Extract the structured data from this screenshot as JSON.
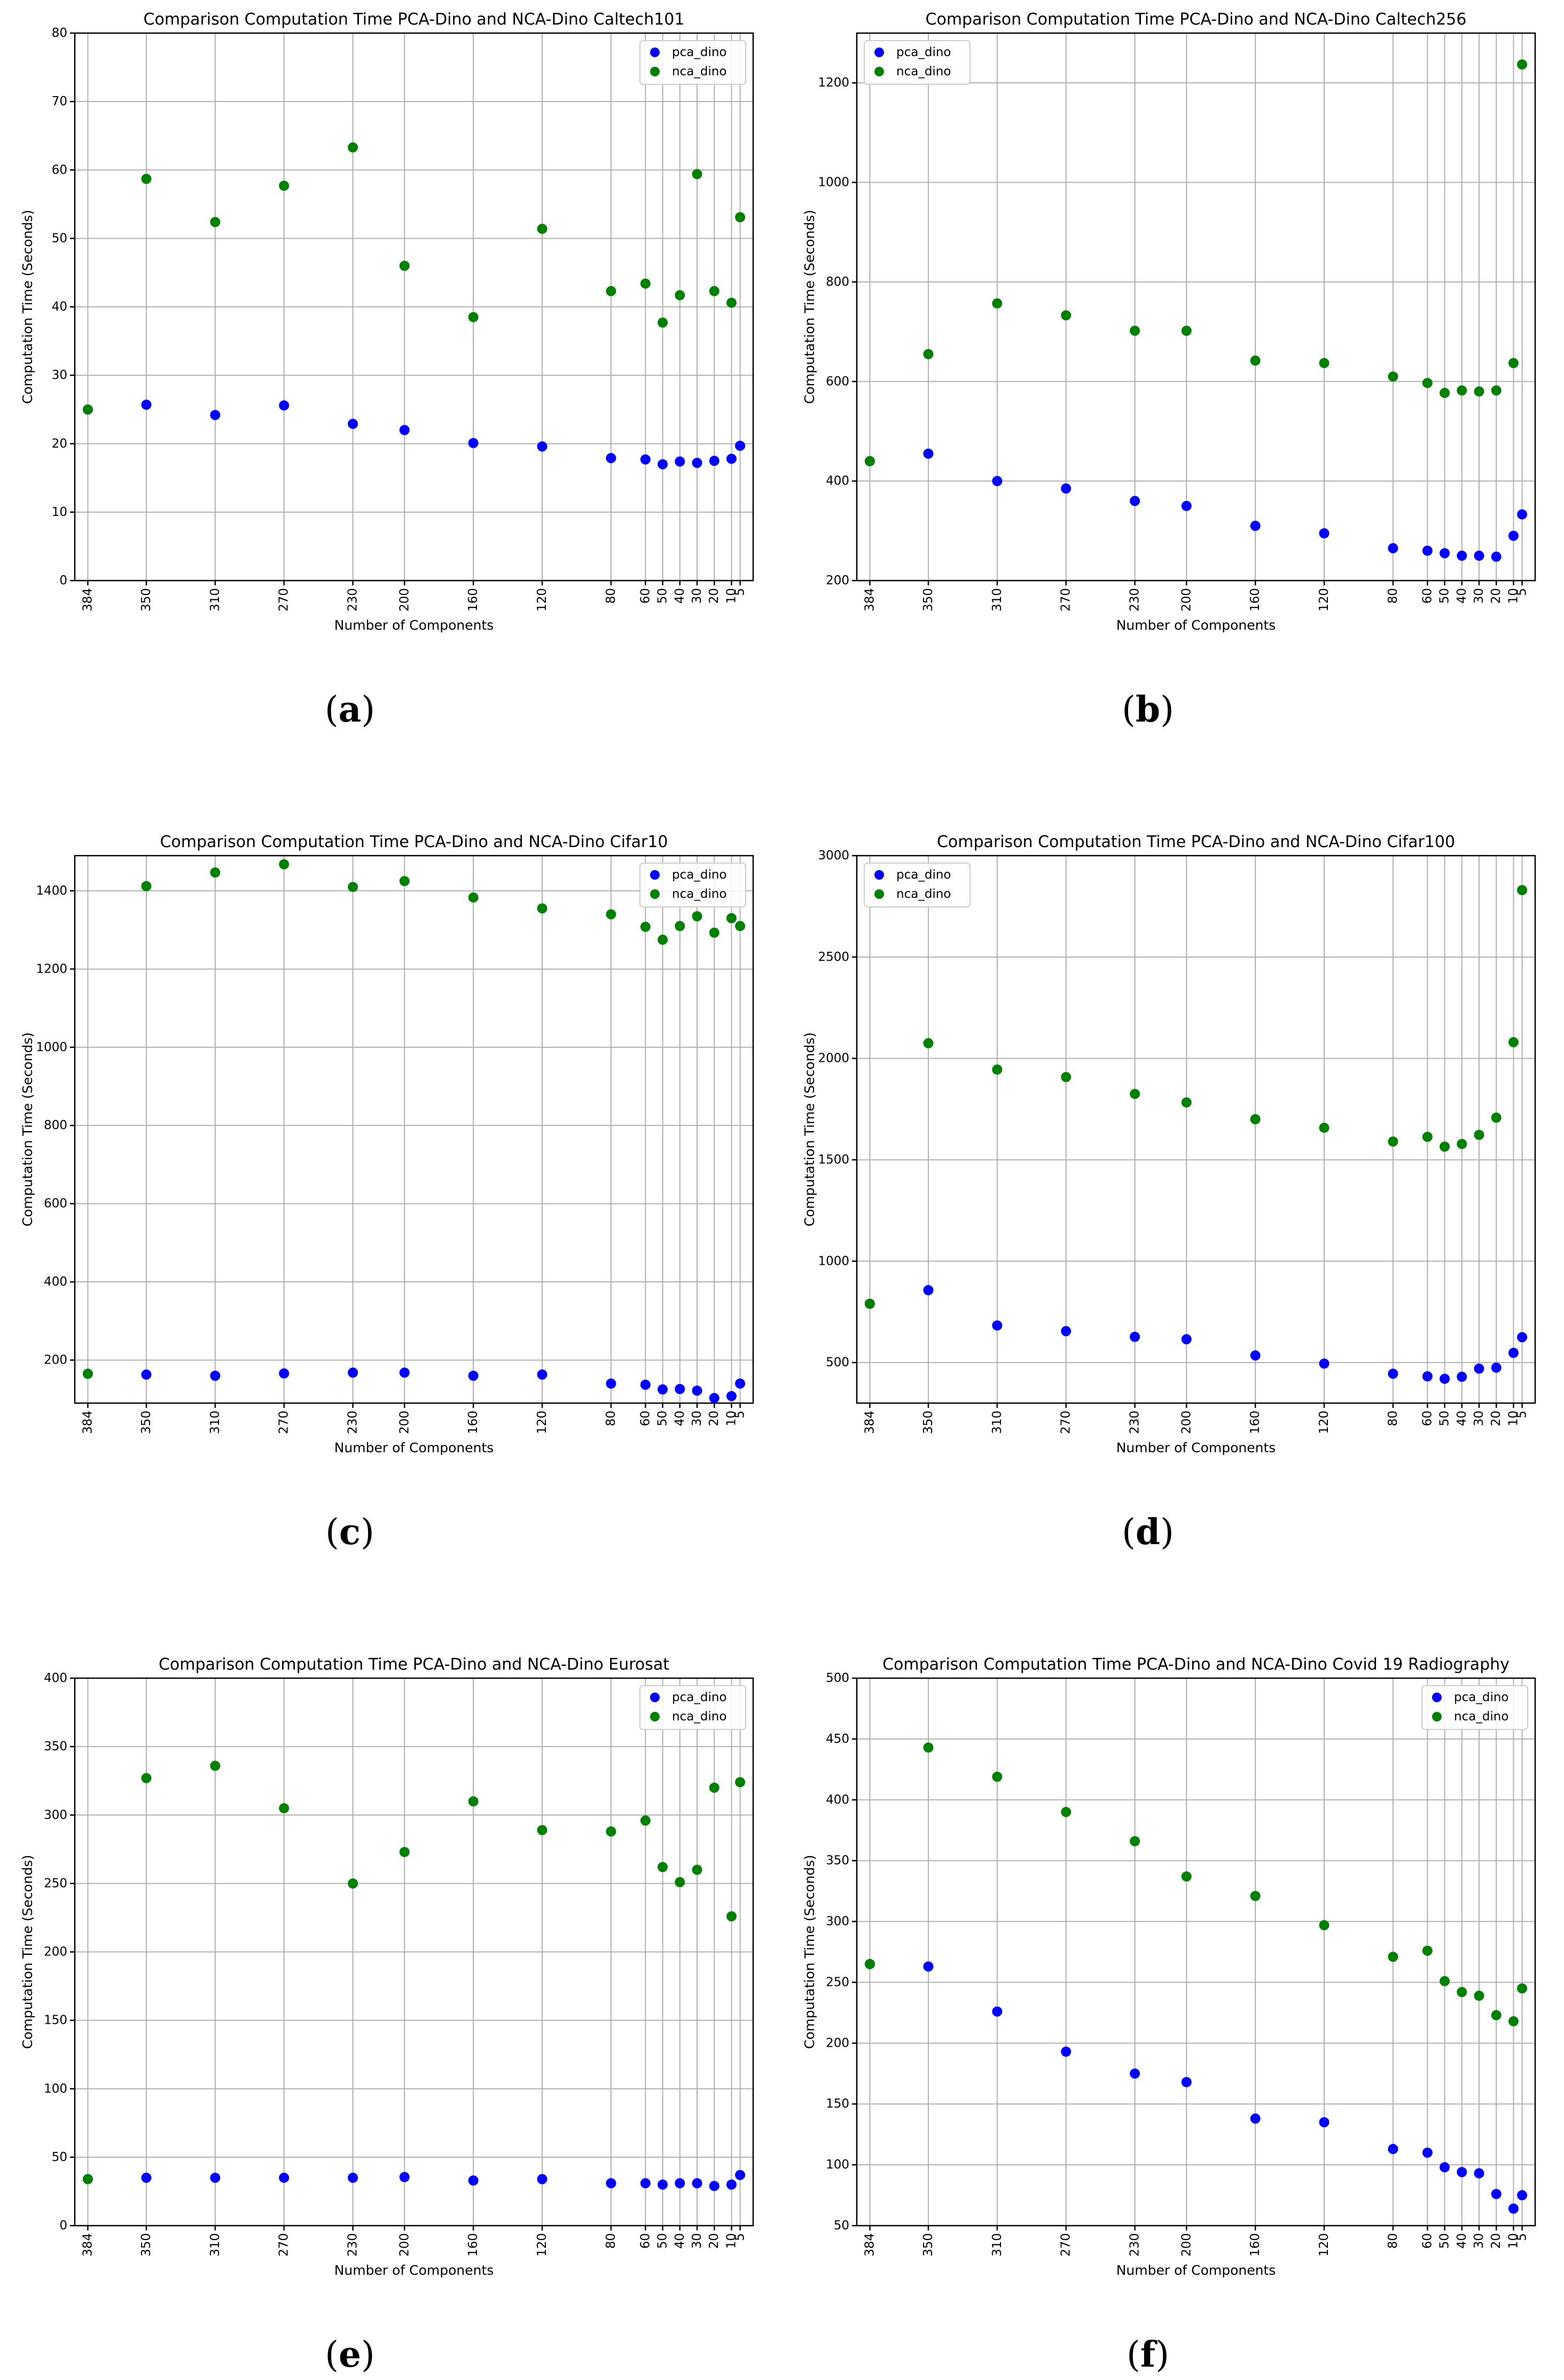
{
  "colors": {
    "pca": "#0000ff",
    "nca": "#008000",
    "grid": "#b0b0b0"
  },
  "chart_data": [
    {
      "type": "scatter",
      "title": "Comparison Computation Time PCA-Dino and NCA-Dino Caltech101",
      "xlabel": "Number of Components",
      "ylabel": "Computation Time (Seconds)",
      "x": [
        384,
        350,
        310,
        270,
        230,
        200,
        160,
        120,
        80,
        60,
        50,
        40,
        30,
        20,
        10,
        5
      ],
      "x_tick_labels": [
        "384",
        "350",
        "310",
        "270",
        "230",
        "200",
        "160",
        "120",
        "80",
        "60",
        "50",
        "40",
        "30",
        "20",
        "10",
        "5"
      ],
      "x_inverted": true,
      "ylim": [
        0,
        80
      ],
      "yticks": [
        0,
        10,
        20,
        30,
        40,
        50,
        60,
        70,
        80
      ],
      "legend_loc": "upper right",
      "series": [
        {
          "name": "pca_dino",
          "values": [
            25,
            25.7,
            24.2,
            25.6,
            22.9,
            22,
            20.1,
            19.6,
            17.9,
            17.7,
            17,
            17.4,
            17.2,
            17.5,
            17.8,
            19.7
          ]
        },
        {
          "name": "nca_dino",
          "values": [
            25,
            58.7,
            52.4,
            57.7,
            63.3,
            46,
            38.5,
            51.4,
            42.3,
            43.4,
            37.7,
            41.7,
            59.4,
            42.3,
            40.6,
            53.1
          ]
        }
      ]
    },
    {
      "type": "scatter",
      "title": "Comparison Computation Time PCA-Dino and NCA-Dino Caltech256",
      "xlabel": "Number of Components",
      "ylabel": "Computation Time (Seconds)",
      "x": [
        384,
        350,
        310,
        270,
        230,
        200,
        160,
        120,
        80,
        60,
        50,
        40,
        30,
        20,
        10,
        5
      ],
      "x_tick_labels": [
        "384",
        "350",
        "310",
        "270",
        "230",
        "200",
        "160",
        "120",
        "80",
        "60",
        "50",
        "40",
        "30",
        "20",
        "10",
        "5"
      ],
      "x_inverted": true,
      "ylim": [
        200,
        1300
      ],
      "yticks": [
        200,
        400,
        600,
        800,
        1000,
        1200
      ],
      "legend_loc": "upper left",
      "series": [
        {
          "name": "pca_dino",
          "values": [
            440,
            455,
            400,
            385,
            360,
            350,
            310,
            295,
            265,
            260,
            255,
            250,
            250,
            248,
            290,
            333
          ]
        },
        {
          "name": "nca_dino",
          "values": [
            440,
            655,
            757,
            733,
            702,
            702,
            642,
            637,
            610,
            597,
            577,
            582,
            580,
            582,
            637,
            1237
          ]
        }
      ]
    },
    {
      "type": "scatter",
      "title": "Comparison Computation Time PCA-Dino and NCA-Dino Cifar10",
      "xlabel": "Number of Components",
      "ylabel": "Computation Time (Seconds)",
      "x": [
        384,
        350,
        310,
        270,
        230,
        200,
        160,
        120,
        80,
        60,
        50,
        40,
        30,
        20,
        10,
        5
      ],
      "x_tick_labels": [
        "384",
        "350",
        "310",
        "270",
        "230",
        "200",
        "160",
        "120",
        "80",
        "60",
        "50",
        "40",
        "30",
        "20",
        "10",
        "5"
      ],
      "x_inverted": true,
      "ylim": [
        90,
        1490
      ],
      "yticks": [
        200,
        400,
        600,
        800,
        1000,
        1200,
        1400
      ],
      "legend_loc": "upper right",
      "series": [
        {
          "name": "pca_dino",
          "values": [
            165,
            163,
            160,
            166,
            168,
            168,
            160,
            163,
            140,
            137,
            125,
            126,
            122,
            103,
            108,
            140
          ]
        },
        {
          "name": "nca_dino",
          "values": [
            165,
            1412,
            1447,
            1468,
            1410,
            1425,
            1383,
            1355,
            1340,
            1308,
            1275,
            1310,
            1335,
            1293,
            1330,
            1310
          ]
        }
      ]
    },
    {
      "type": "scatter",
      "title": "Comparison Computation Time PCA-Dino and NCA-Dino Cifar100",
      "xlabel": "Number of Components",
      "ylabel": "Computation Time (Seconds)",
      "x": [
        384,
        350,
        310,
        270,
        230,
        200,
        160,
        120,
        80,
        60,
        50,
        40,
        30,
        20,
        10,
        5
      ],
      "x_tick_labels": [
        "384",
        "350",
        "310",
        "270",
        "230",
        "200",
        "160",
        "120",
        "80",
        "60",
        "50",
        "40",
        "30",
        "20",
        "10",
        "5"
      ],
      "x_inverted": true,
      "ylim": [
        300,
        3000
      ],
      "yticks": [
        500,
        1000,
        1500,
        2000,
        2500,
        3000
      ],
      "legend_loc": "upper left",
      "series": [
        {
          "name": "pca_dino",
          "values": [
            790,
            857,
            683,
            655,
            627,
            615,
            535,
            495,
            445,
            432,
            420,
            430,
            470,
            475,
            548,
            625
          ]
        },
        {
          "name": "nca_dino",
          "values": [
            790,
            2075,
            1945,
            1908,
            1825,
            1783,
            1700,
            1658,
            1590,
            1613,
            1565,
            1578,
            1623,
            1708,
            2080,
            2830
          ]
        }
      ]
    },
    {
      "type": "scatter",
      "title": "Comparison Computation Time PCA-Dino and NCA-Dino Eurosat",
      "xlabel": "Number of Components",
      "ylabel": "Computation Time (Seconds)",
      "x": [
        384,
        350,
        310,
        270,
        230,
        200,
        160,
        120,
        80,
        60,
        50,
        40,
        30,
        20,
        10,
        5
      ],
      "x_tick_labels": [
        "384",
        "350",
        "310",
        "270",
        "230",
        "200",
        "160",
        "120",
        "80",
        "60",
        "50",
        "40",
        "30",
        "20",
        "10",
        "5"
      ],
      "x_inverted": true,
      "ylim": [
        0,
        400
      ],
      "yticks": [
        0,
        50,
        100,
        150,
        200,
        250,
        300,
        350,
        400
      ],
      "legend_loc": "upper right",
      "series": [
        {
          "name": "pca_dino",
          "values": [
            34,
            35,
            35,
            35,
            35,
            35.5,
            33,
            34,
            31,
            31,
            30,
            31,
            31,
            29,
            30,
            37
          ]
        },
        {
          "name": "nca_dino",
          "values": [
            34,
            327,
            336,
            305,
            250,
            273,
            310,
            289,
            288,
            296,
            262,
            251,
            260,
            320,
            226,
            324
          ]
        }
      ]
    },
    {
      "type": "scatter",
      "title": "Comparison Computation Time PCA-Dino and NCA-Dino Covid 19 Radiography",
      "xlabel": "Number of Components",
      "ylabel": "Computation Time (Seconds)",
      "x": [
        384,
        350,
        310,
        270,
        230,
        200,
        160,
        120,
        80,
        60,
        50,
        40,
        30,
        20,
        10,
        5
      ],
      "x_tick_labels": [
        "384",
        "350",
        "310",
        "270",
        "230",
        "200",
        "160",
        "120",
        "80",
        "60",
        "50",
        "40",
        "30",
        "20",
        "10",
        "5"
      ],
      "x_inverted": true,
      "ylim": [
        50,
        500
      ],
      "yticks": [
        50,
        100,
        150,
        200,
        250,
        300,
        350,
        400,
        450,
        500
      ],
      "legend_loc": "upper right",
      "series": [
        {
          "name": "pca_dino",
          "values": [
            265,
            263,
            226,
            193,
            175,
            168,
            138,
            135,
            113,
            110,
            98,
            94,
            93,
            76,
            64,
            75
          ]
        },
        {
          "name": "nca_dino",
          "values": [
            265,
            443,
            419,
            390,
            366,
            337,
            321,
            297,
            271,
            276,
            251,
            242,
            239,
            223,
            218,
            245
          ]
        }
      ]
    }
  ],
  "captions": [
    "a",
    "b",
    "c",
    "d",
    "e",
    "f"
  ]
}
